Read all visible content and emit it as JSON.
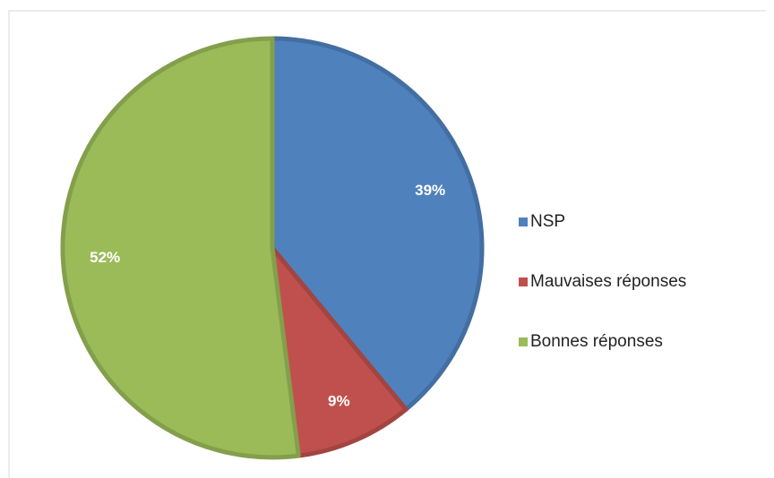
{
  "chart_data": {
    "type": "pie",
    "categories": [
      "NSP",
      "Mauvaises réponses",
      "Bonnes réponses"
    ],
    "values": [
      39,
      9,
      52
    ],
    "value_labels": [
      "39%",
      "9%",
      "52%"
    ],
    "colors": [
      "#4f81bd",
      "#c0504d",
      "#9bbb59"
    ],
    "legend": "right"
  }
}
